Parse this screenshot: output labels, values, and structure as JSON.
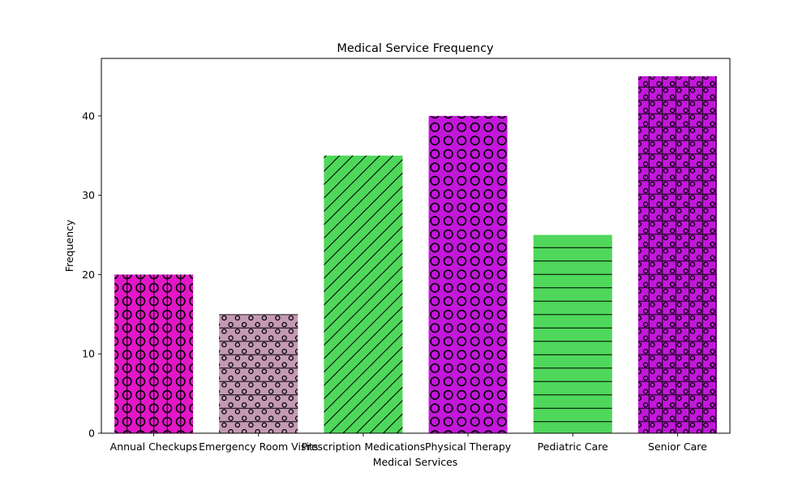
{
  "chart_data": {
    "type": "bar",
    "title": "Medical Service Frequency",
    "xlabel": "Medical Services",
    "ylabel": "Frequency",
    "categories": [
      "Annual Checkups",
      "Emergency Room Visits",
      "Prescription Medications",
      "Physical Therapy",
      "Pediatric Care",
      "Senior Care"
    ],
    "values": [
      20,
      15,
      35,
      40,
      25,
      45
    ],
    "ylim": [
      0,
      47.25
    ],
    "yticks": [
      0,
      10,
      20,
      30,
      40
    ],
    "grid": false,
    "bars": [
      {
        "color": "#e217c7",
        "hatch": [
          "vertical-lines",
          "large-circles"
        ]
      },
      {
        "color": "#c499b4",
        "hatch": [
          "horizontal-lines",
          "small-circles"
        ]
      },
      {
        "color": "#4fd75b",
        "hatch": [
          "diagonal-lines"
        ]
      },
      {
        "color": "#c317db",
        "hatch": [
          "large-circles"
        ]
      },
      {
        "color": "#4fd75b",
        "hatch": [
          "horizontal-lines"
        ]
      },
      {
        "color": "#c317db",
        "hatch": [
          "grid-lines",
          "small-circles"
        ]
      }
    ]
  }
}
